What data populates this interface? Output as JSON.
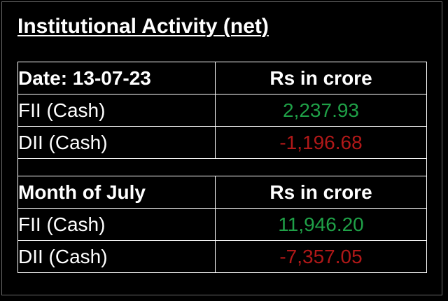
{
  "title": "Institutional Activity (net)",
  "colors": {
    "positive": "#1fa047",
    "negative": "#b01818",
    "text": "#ffffff",
    "background": "#000000"
  },
  "daily": {
    "header_label": "Date: 13-07-23",
    "header_unit": "Rs in crore",
    "rows": [
      {
        "label": "FII (Cash)",
        "value": "2,237.93"
      },
      {
        "label": "DII (Cash)",
        "value": "-1,196.68"
      }
    ]
  },
  "monthly": {
    "header_label": "Month of July",
    "header_unit": "Rs in crore",
    "rows": [
      {
        "label": "FII (Cash)",
        "value": "11,946.20"
      },
      {
        "label": "DII (Cash)",
        "value": "-7,357.05"
      }
    ]
  }
}
